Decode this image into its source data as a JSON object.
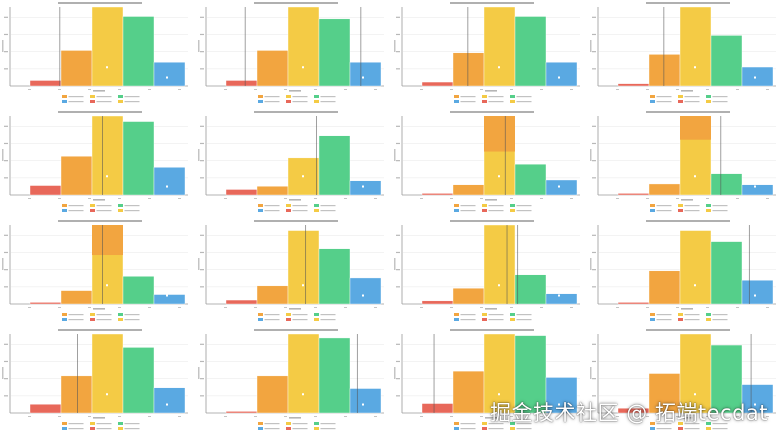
{
  "watermark": "掘金技术社区 @ 拓端tecdat",
  "palette": [
    "#e8685a",
    "#f2a540",
    "#f4cb45",
    "#55cf8a",
    "#5aa9e2"
  ],
  "legend_colors": [
    "#f2a540",
    "#f4cb45",
    "#55cf8a",
    "#5aa9e2",
    "#e8685a",
    "#f4cb45"
  ],
  "chart_data": [
    {
      "type": "bar",
      "values": [
        0.07,
        0.45,
        1.0,
        0.88,
        0.3
      ],
      "vlines": [
        0.28
      ]
    },
    {
      "type": "bar",
      "values": [
        0.07,
        0.45,
        1.0,
        0.85,
        0.3
      ],
      "vlines": [
        0.22,
        0.87
      ]
    },
    {
      "type": "bar",
      "values": [
        0.05,
        0.42,
        1.0,
        0.88,
        0.3
      ],
      "vlines": [
        0.37
      ]
    },
    {
      "type": "bar",
      "values": [
        0.03,
        0.4,
        1.0,
        0.64,
        0.24
      ],
      "vlines": [
        0.37
      ]
    },
    {
      "type": "bar",
      "values": [
        0.12,
        0.49,
        1.0,
        0.93,
        0.35
      ],
      "vlines": [
        0.52
      ]
    },
    {
      "type": "bar",
      "values": [
        0.07,
        0.11,
        0.47,
        0.75,
        0.18
      ],
      "vlines": [
        0.62
      ]
    },
    {
      "type": "bar",
      "values": [
        0.02,
        0.13,
        1.0,
        0.39,
        0.19
      ],
      "vlines": [
        0.58
      ],
      "stacked_top": 0.45
    },
    {
      "type": "bar",
      "values": [
        0.02,
        0.14,
        1.0,
        0.27,
        0.13
      ],
      "vlines": [
        0.69
      ],
      "stacked_top": 0.3
    },
    {
      "type": "bar",
      "values": [
        0.02,
        0.17,
        1.0,
        0.35,
        0.12
      ],
      "vlines": [
        0.52
      ],
      "stacked_top": 0.38
    },
    {
      "type": "bar",
      "values": [
        0.05,
        0.23,
        0.93,
        0.7,
        0.33
      ],
      "vlines": [
        0.56
      ]
    },
    {
      "type": "bar",
      "values": [
        0.04,
        0.2,
        1.0,
        0.37,
        0.13
      ],
      "vlines": [
        0.59,
        0.65
      ]
    },
    {
      "type": "bar",
      "values": [
        0.02,
        0.42,
        0.93,
        0.79,
        0.3
      ],
      "vlines": [
        0.85
      ]
    },
    {
      "type": "bar",
      "values": [
        0.11,
        0.47,
        1.0,
        0.83,
        0.32
      ],
      "vlines": [
        0.38
      ]
    },
    {
      "type": "bar",
      "values": [
        0.02,
        0.47,
        1.0,
        0.95,
        0.31
      ],
      "vlines": [
        0.85
      ]
    },
    {
      "type": "bar",
      "values": [
        0.12,
        0.53,
        1.0,
        0.98,
        0.45
      ],
      "vlines": [
        0.18
      ]
    },
    {
      "type": "bar",
      "values": [
        0.06,
        0.5,
        1.0,
        0.86,
        0.36
      ],
      "vlines": [
        0.86
      ]
    }
  ]
}
